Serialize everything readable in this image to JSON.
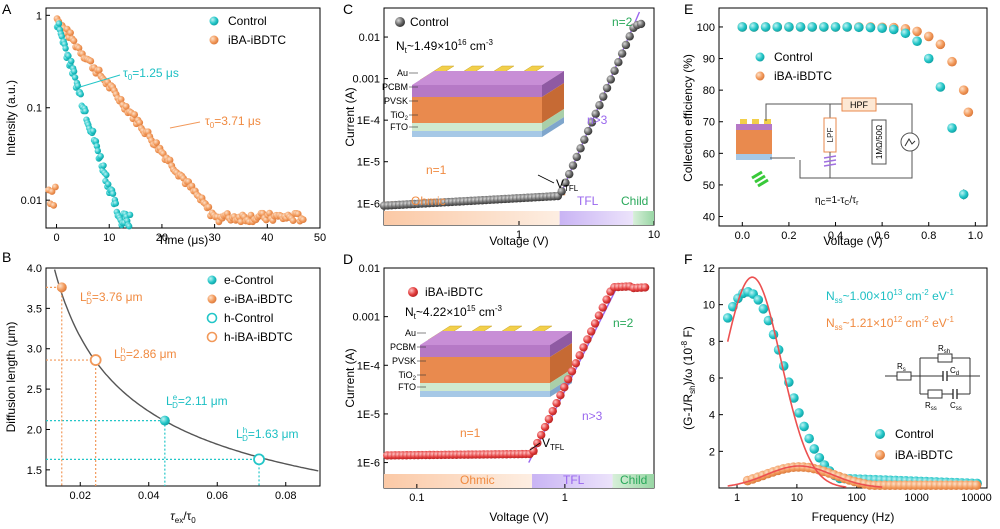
{
  "colors": {
    "control": "#23c6c8",
    "iba": "#f2995a",
    "fit": "#ec5050",
    "curve": "#555555",
    "cyan_text": "#1cbfc3",
    "orange_text": "#f08a40",
    "purple_text": "#9966ee",
    "green_text": "#29a85a",
    "red_series": "#e23c3c"
  },
  "panels": {
    "A": {
      "letter": "A"
    },
    "B": {
      "letter": "B"
    },
    "C": {
      "letter": "C"
    },
    "D": {
      "letter": "D"
    },
    "E": {
      "letter": "E"
    },
    "F": {
      "letter": "F"
    }
  },
  "chart_data": [
    {
      "panel": "A",
      "type": "scatter",
      "xlabel": "Time (μs)",
      "ylabel": "Intensity (a.u.)",
      "xlim": [
        -2,
        50
      ],
      "ylim": [
        0.005,
        1.2
      ],
      "yscale": "log",
      "xticks": [
        "0",
        "10",
        "20",
        "30",
        "40",
        "50"
      ],
      "yticks": [
        "0.01",
        "0.1",
        "1"
      ],
      "legend": [
        "Control",
        "iBA-iBDTC"
      ],
      "legend_position": "top-right",
      "annotations": [
        {
          "text": "τ0=1.25 μs",
          "series": "Control"
        },
        {
          "text": "τ0=3.71 μs",
          "series": "iBA-iBDTC"
        }
      ],
      "series": [
        {
          "name": "Control",
          "model": "exp",
          "tau": 1.25,
          "x_end": 14
        },
        {
          "name": "iBA-iBDTC",
          "model": "exp",
          "tau": 3.71,
          "x_end": 47
        }
      ]
    },
    {
      "panel": "B",
      "type": "line",
      "xlabel": "τex/τ0",
      "ylabel": "Diffusion length (μm)",
      "xlim": [
        0.01,
        0.09
      ],
      "ylim": [
        1.3,
        4.0
      ],
      "xticks": [
        "0.02",
        "0.04",
        "0.06",
        "0.08"
      ],
      "yticks": [
        "1.5",
        "2.0",
        "2.5",
        "3.0",
        "3.5",
        "4.0"
      ],
      "legend": [
        "e-Control",
        "e-iBA-iBDTC",
        "h-Control",
        "h-iBA-iBDTC"
      ],
      "legend_position": "top-right",
      "points": [
        {
          "series": "e-Control",
          "x": 0.0447,
          "y": 2.11,
          "label": "LDe=2.11 μm"
        },
        {
          "series": "e-iBA-iBDTC",
          "x": 0.0146,
          "y": 3.76,
          "label": "LDe=3.76 μm"
        },
        {
          "series": "h-Control",
          "x": 0.0722,
          "y": 1.63,
          "label": "LDh=1.63 μm"
        },
        {
          "series": "h-iBA-iBDTC",
          "x": 0.0245,
          "y": 2.86,
          "label": "LDh=2.86 μm"
        }
      ]
    },
    {
      "panel": "C",
      "type": "scatter",
      "xlabel": "Voltage (V)",
      "ylabel": "Current (A)",
      "xscale": "log",
      "yscale": "log",
      "xlim": [
        0.1,
        10
      ],
      "ylim": [
        3e-07,
        0.05
      ],
      "xticks": [
        "1",
        "10"
      ],
      "yticks": [
        "1E-6",
        "1E-5",
        "1E-4",
        "0.001",
        "0.01"
      ],
      "legend": [
        "Control"
      ],
      "density_text": "Nt~1.49×10^16 cm^-3",
      "regions": [
        "Ohmic",
        "TFL",
        "Child"
      ],
      "labels": [
        "n=1",
        "n>3",
        "n=2",
        "VTFL"
      ],
      "layers": [
        "Au",
        "PCBM",
        "PVSK",
        "TiO2",
        "FTO"
      ],
      "vtfl": 2.0,
      "vchild": 7.0,
      "i_at_vtfl": 1.5e-06
    },
    {
      "panel": "D",
      "type": "scatter",
      "xlabel": "Voltage (V)",
      "ylabel": "Current (A)",
      "xscale": "log",
      "yscale": "log",
      "xlim": [
        0.06,
        4
      ],
      "ylim": [
        3e-07,
        0.01
      ],
      "xticks": [
        "0.1",
        "1"
      ],
      "yticks": [
        "1E-6",
        "1E-5",
        "1E-4",
        "0.001",
        "0.01"
      ],
      "legend": [
        "iBA-iBDTC"
      ],
      "density_text": "Nt~4.22×10^15 cm^-3",
      "regions": [
        "Ohmic",
        "TFL",
        "Child"
      ],
      "labels": [
        "n=1",
        "n>3",
        "n=2",
        "VTFL"
      ],
      "layers": [
        "Au",
        "PCBM",
        "PVSK",
        "TiO2",
        "FTO"
      ],
      "vtfl": 0.6,
      "vchild": 2.1,
      "i_at_vtfl": 1.5e-06
    },
    {
      "panel": "E",
      "type": "scatter",
      "xlabel": "Voltage (V)",
      "ylabel": "Collection efficiency (%)",
      "xlim": [
        -0.1,
        1.05
      ],
      "ylim": [
        37,
        106
      ],
      "xticks": [
        "0.0",
        "0.2",
        "0.4",
        "0.6",
        "0.8",
        "1.0"
      ],
      "yticks": [
        "40",
        "50",
        "60",
        "70",
        "80",
        "90",
        "100"
      ],
      "legend": [
        "Control",
        "iBA-iBDTC"
      ],
      "legend_position": "top-left",
      "circuit_labels": [
        "HPF",
        "LPF",
        "1MΩ/50Ω"
      ],
      "equation": "ηC=1-τC/τr",
      "series": [
        {
          "name": "Control",
          "x": [
            0,
            0.05,
            0.1,
            0.15,
            0.2,
            0.25,
            0.3,
            0.35,
            0.4,
            0.45,
            0.5,
            0.55,
            0.6,
            0.65,
            0.7,
            0.75,
            0.8,
            0.85,
            0.9,
            0.95
          ],
          "y": [
            100,
            100,
            100,
            100,
            100,
            100,
            100,
            100,
            100,
            100,
            99.9,
            99.8,
            99.6,
            99.2,
            98,
            95.5,
            90,
            81,
            68,
            47
          ]
        },
        {
          "name": "iBA-iBDTC",
          "x": [
            0,
            0.05,
            0.1,
            0.15,
            0.2,
            0.25,
            0.3,
            0.35,
            0.4,
            0.45,
            0.5,
            0.55,
            0.6,
            0.65,
            0.7,
            0.75,
            0.8,
            0.85,
            0.9,
            0.95,
            0.97
          ],
          "y": [
            100,
            100,
            100,
            100,
            100,
            100,
            100,
            100,
            100,
            100,
            100,
            100,
            99.9,
            99.8,
            99.4,
            98.6,
            97,
            94.5,
            89,
            80,
            73
          ]
        }
      ]
    },
    {
      "panel": "F",
      "type": "scatter",
      "xlabel": "Frequency (Hz)",
      "ylabel": "(G-1/Rsh)/ω (10^-8 F)",
      "xscale": "log",
      "xlim": [
        0.5,
        15000
      ],
      "ylim": [
        0,
        12
      ],
      "xticks": [
        "1",
        "10",
        "100",
        "1000",
        "10000"
      ],
      "yticks": [
        "2",
        "4",
        "6",
        "8",
        "10",
        "12"
      ],
      "legend": [
        "Control",
        "iBA-iBDTC"
      ],
      "legend_position": "bottom-right",
      "annotations": [
        "Nss~1.00×10^13 cm^-2 eV^-1",
        "Nss~1.21×10^12 cm^-2 eV^-1"
      ],
      "circuit_labels": [
        "Rs",
        "Rsh",
        "Cd",
        "Rss",
        "Css"
      ],
      "series": [
        {
          "name": "Control",
          "model": "peak",
          "peak_f": 1.5,
          "peak_y": 10.7
        },
        {
          "name": "iBA-iBDTC",
          "model": "peak",
          "peak_f": 11,
          "peak_y": 1.15
        }
      ]
    }
  ],
  "textA": {
    "xlabel": "Time (μs)",
    "ylabel": "Intensity (a.u.)",
    "leg1": "Control",
    "leg2": "iBA-iBDTC",
    "tau1_pre": "τ",
    "tau1_sub": "0",
    "tau1_post": "=1.25 μs",
    "tau2_pre": "τ",
    "tau2_sub": "0",
    "tau2_post": "=3.71 μs",
    "xt": [
      "0",
      "10",
      "20",
      "30",
      "40",
      "50"
    ],
    "yt": [
      "0.01",
      "0.1",
      "1"
    ]
  },
  "textB": {
    "xlabel_a": "τ",
    "xlabel_sub1": "ex",
    "xlabel_b": "/τ",
    "xlabel_sub2": "0",
    "ylabel": "Diffusion length (μm)",
    "leg": [
      "e-Control",
      "e-iBA-iBDTC",
      "h-Control",
      "h-iBA-iBDTC"
    ],
    "lab1_pre": "L",
    "lab1_sup": "e",
    "lab1_sub": "D",
    "lab1_post": "=3.76 μm",
    "lab2_pre": "L",
    "lab2_sup": "h",
    "lab2_sub": "D",
    "lab2_post": "=2.86 μm",
    "lab3_pre": "L",
    "lab3_sup": "e",
    "lab3_sub": "D",
    "lab3_post": "=2.11 μm",
    "lab4_pre": "L",
    "lab4_sup": "h",
    "lab4_sub": "D",
    "lab4_post": "=1.63 μm",
    "xt": [
      "0.02",
      "0.04",
      "0.06",
      "0.08"
    ],
    "yt": [
      "1.5",
      "2.0",
      "2.5",
      "3.0",
      "3.5",
      "4.0"
    ]
  },
  "textC": {
    "xlabel": "Voltage (V)",
    "ylabel": "Current (A)",
    "legend": "Control",
    "nt_a": "N",
    "nt_sub": "t",
    "nt_b": "~1.49×10",
    "nt_sup": "16",
    "nt_c": " cm",
    "nt_sup2": "-3",
    "ohmic": "Ohmic",
    "tfl": "TFL",
    "child": "Child",
    "n1": "n=1",
    "n3": "n>3",
    "n2": "n=2",
    "vtfl_a": "V",
    "vtfl_sub": "TFL",
    "layers": [
      "Au",
      "PCBM",
      "PVSK",
      "TiO",
      "FTO"
    ],
    "tio_sub": "2",
    "xt": [
      "1",
      "10"
    ],
    "yt": [
      "1E-6",
      "1E-5",
      "1E-4",
      "0.001",
      "0.01"
    ]
  },
  "textD": {
    "xlabel": "Voltage (V)",
    "ylabel": "Current (A)",
    "legend": "iBA-iBDTC",
    "nt_a": "N",
    "nt_sub": "t",
    "nt_b": "~4.22×10",
    "nt_sup": "15",
    "nt_c": " cm",
    "nt_sup2": "-3",
    "ohmic": "Ohmic",
    "tfl": "TFL",
    "child": "Child",
    "n1": "n=1",
    "n3": "n>3",
    "n2": "n=2",
    "vtfl_a": "V",
    "vtfl_sub": "TFL",
    "layers": [
      "Au",
      "PCBM",
      "PVSK",
      "TiO",
      "FTO"
    ],
    "tio_sub": "2",
    "xt": [
      "0.1",
      "1"
    ],
    "yt": [
      "1E-6",
      "1E-5",
      "1E-4",
      "0.001",
      "0.01"
    ]
  },
  "textE": {
    "xlabel": "Voltage (V)",
    "ylabel": "Collection efficiency (%)",
    "leg1": "Control",
    "leg2": "iBA-iBDTC",
    "hpf": "HPF",
    "lpf": "LPF",
    "res": "1MΩ/50Ω",
    "eq_a": "η",
    "eq_sub": "C",
    "eq_b": "=1-τ",
    "eq_sub2": "C",
    "eq_c": "/τ",
    "eq_sub3": "r",
    "xt": [
      "0.0",
      "0.2",
      "0.4",
      "0.6",
      "0.8",
      "1.0"
    ],
    "yt": [
      "40",
      "50",
      "60",
      "70",
      "80",
      "90",
      "100"
    ]
  },
  "textF": {
    "xlabel": "Frequency (Hz)",
    "ylabel_a": "(G-1/R",
    "ylabel_sub": "sh",
    "ylabel_b": ")/ω (10",
    "ylabel_sup": "-8",
    "ylabel_c": " F)",
    "leg1": "Control",
    "leg2": "iBA-iBDTC",
    "n1_a": "N",
    "n1_sub": "ss",
    "n1_b": "~1.00×10",
    "n1_sup": "13",
    "n1_c": " cm",
    "n1_sup2": "-2",
    "n1_d": " eV",
    "n1_sup3": "-1",
    "n2_a": "N",
    "n2_sub": "ss",
    "n2_b": "~1.21×10",
    "n2_sup": "12",
    "n2_c": " cm",
    "n2_sup2": "-2",
    "n2_d": " eV",
    "n2_sup3": "-1",
    "rs": "R",
    "rs_sub": "s",
    "rsh": "R",
    "rsh_sub": "sh",
    "cd": "C",
    "cd_sub": "d",
    "rss": "R",
    "rss_sub": "ss",
    "css": "C",
    "css_sub": "ss",
    "xt": [
      "1",
      "10",
      "100",
      "1000",
      "10000"
    ],
    "yt": [
      "2",
      "4",
      "6",
      "8",
      "10",
      "12"
    ]
  }
}
